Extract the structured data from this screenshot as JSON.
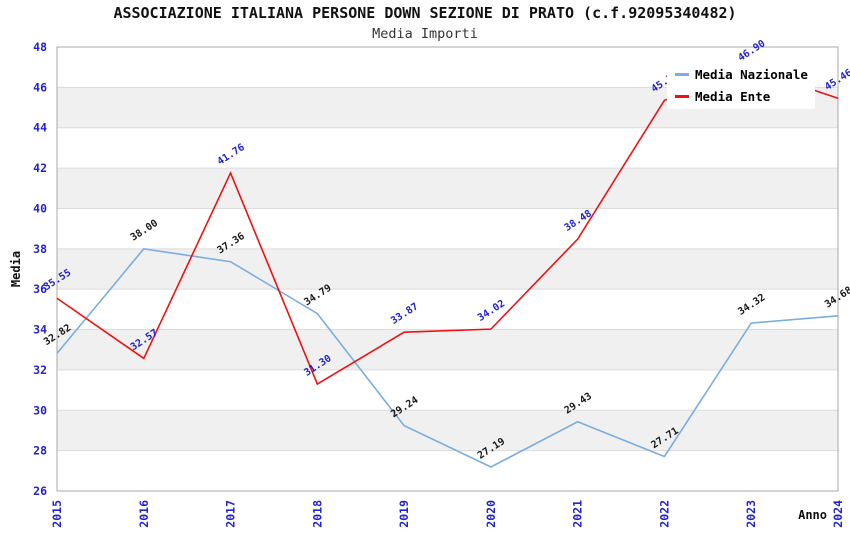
{
  "title": "ASSOCIAZIONE ITALIANA PERSONE DOWN SEZIONE DI PRATO (c.f.92095340482)",
  "subtitle": "Media Importi",
  "colors": {
    "tick_label": "#2323cc",
    "gridline": "#dcdcdc",
    "plot_border": "#a9a9a9",
    "band": "#f0f0f0",
    "nazionale_line": "#7aaede",
    "ente_line": "#ee1111"
  },
  "chart_data": {
    "type": "line",
    "x": [
      "2015",
      "2016",
      "2017",
      "2018",
      "2019",
      "2020",
      "2021",
      "2022",
      "2023",
      "2024"
    ],
    "xlabel": "Anno",
    "ylabel": "Media",
    "ylim": [
      26,
      48
    ],
    "ytick_step": 2,
    "grid": true,
    "band_color": "#f0f0f0",
    "legend_position": "top-right",
    "series": [
      {
        "name": "Media Nazionale",
        "color": "#7aaede",
        "label_color": "#1a1a1a",
        "values": [
          32.82,
          38.0,
          37.36,
          34.79,
          29.24,
          27.19,
          29.43,
          27.71,
          34.32,
          34.68
        ]
      },
      {
        "name": "Media Ente",
        "color": "#ee1111",
        "label_color": "#2222cc",
        "values": [
          35.55,
          32.57,
          41.76,
          31.3,
          33.87,
          34.02,
          38.48,
          45.36,
          46.9,
          45.46
        ]
      }
    ]
  }
}
